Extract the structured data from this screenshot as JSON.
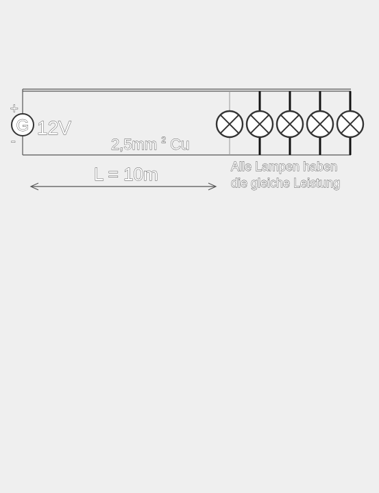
{
  "generator": {
    "symbol": "G",
    "voltage": "12V",
    "plus": "+",
    "minus": "-"
  },
  "cable": {
    "spec_prefix": "2,5mm",
    "spec_sup": "2",
    "spec_suffix": " Cu",
    "length": "L = 10m"
  },
  "lamps": {
    "count": 5,
    "note_line1": "Alle Lampen haben",
    "note_line2": "die gleiche Leistung"
  },
  "icons": [
    "generator-icon",
    "lamp-icon",
    "double-arrow-icon"
  ]
}
